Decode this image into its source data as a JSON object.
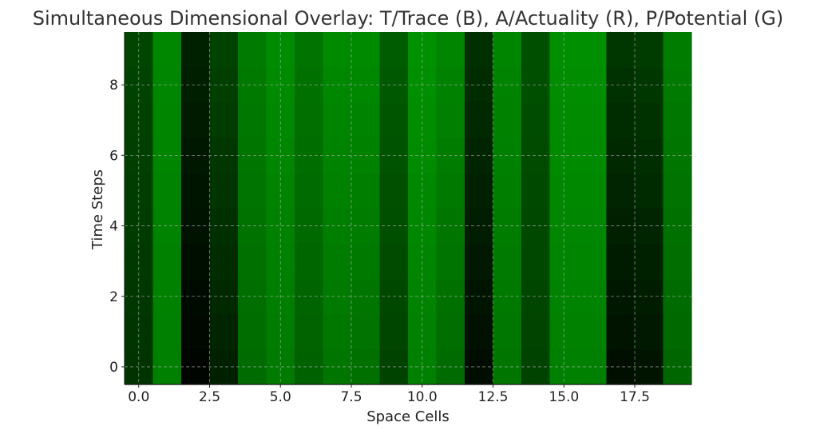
{
  "chart_data": {
    "type": "heatmap",
    "title": "Simultaneous Dimensional Overlay: T/Trace (B), A/Actuality (R), P/Potential (G)",
    "xlabel": "Space Cells",
    "ylabel": "Time Steps",
    "xlim": [
      -0.5,
      19.5
    ],
    "ylim": [
      -0.5,
      9.5
    ],
    "x_ticks": [
      0.0,
      2.5,
      5.0,
      7.5,
      10.0,
      12.5,
      15.0,
      17.5
    ],
    "x_tick_labels": [
      "0.0",
      "2.5",
      "5.0",
      "7.5",
      "10.0",
      "12.5",
      "15.0",
      "17.5"
    ],
    "y_ticks": [
      0,
      2,
      4,
      6,
      8
    ],
    "y_tick_labels": [
      "0",
      "2",
      "4",
      "6",
      "8"
    ],
    "grid": true,
    "colormap": "green channel intensity",
    "columns": 20,
    "rows": 10,
    "green_intensity_bottom": [
      0.2,
      0.5,
      0.02,
      0.13,
      0.42,
      0.48,
      0.38,
      0.46,
      0.44,
      0.26,
      0.5,
      0.42,
      0.05,
      0.46,
      0.26,
      0.5,
      0.5,
      0.06,
      0.08,
      0.4
    ],
    "green_intensity_top": [
      0.27,
      0.53,
      0.13,
      0.26,
      0.48,
      0.55,
      0.45,
      0.54,
      0.54,
      0.36,
      0.57,
      0.52,
      0.19,
      0.52,
      0.31,
      0.56,
      0.56,
      0.21,
      0.23,
      0.49
    ]
  }
}
